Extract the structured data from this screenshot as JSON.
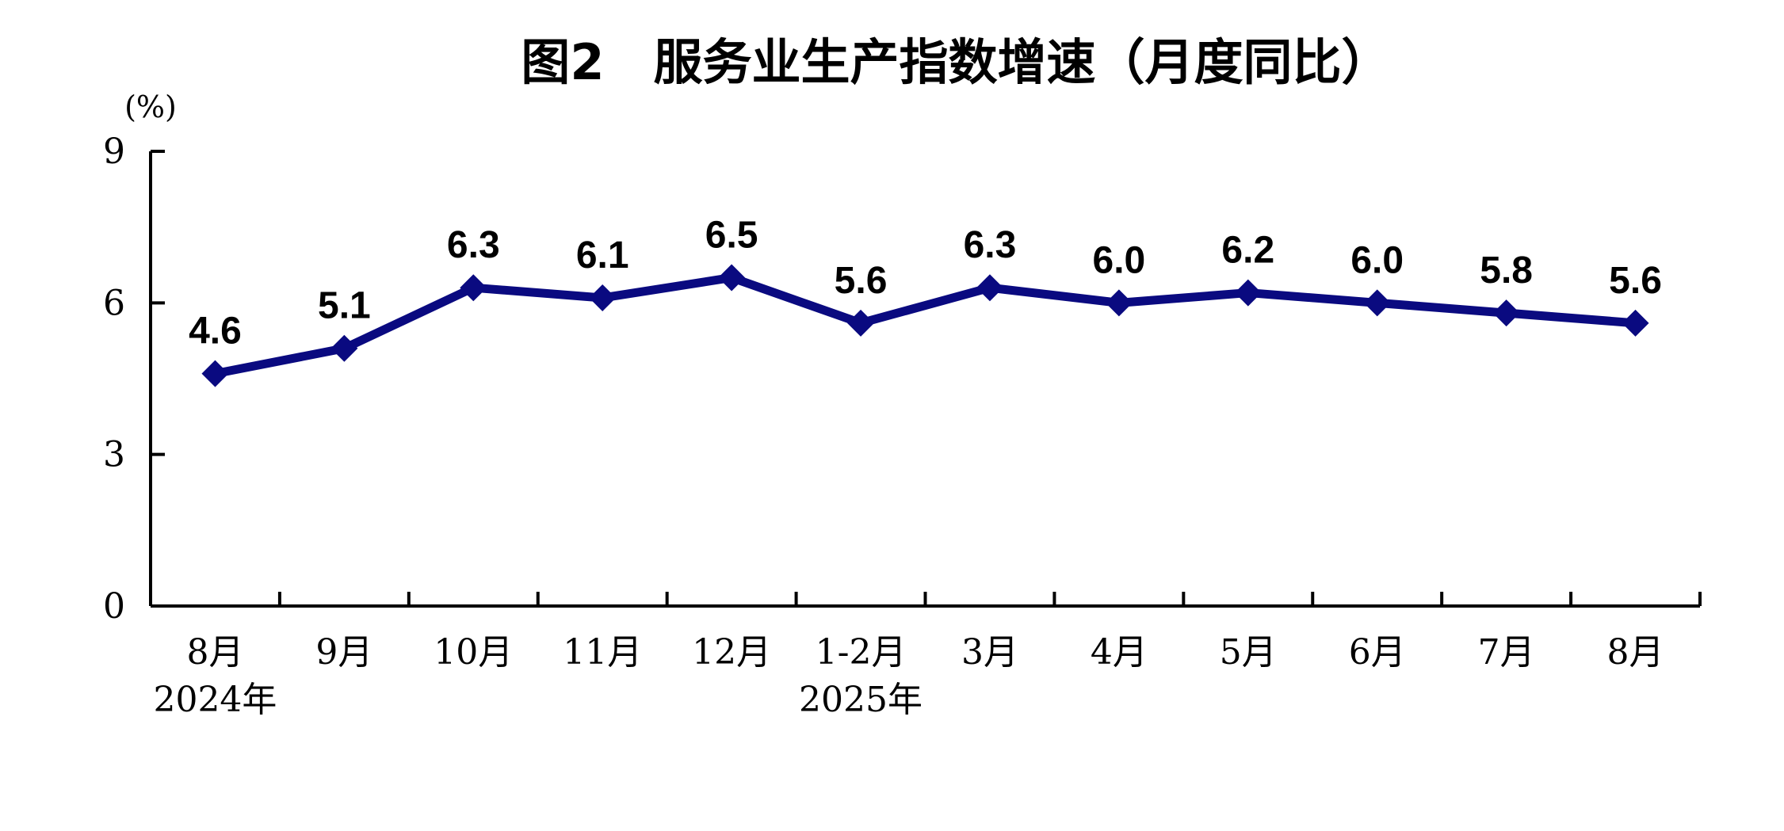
{
  "chart_data": {
    "type": "line",
    "title": "图2　服务业生产指数增速（月度同比）",
    "ylabel": "(%)",
    "xlabel": "",
    "ylim": [
      0,
      9
    ],
    "yticks": [
      "0",
      "3",
      "6",
      "9"
    ],
    "categories": [
      "8月",
      "9月",
      "10月",
      "11月",
      "12月",
      "1-2月",
      "3月",
      "4月",
      "5月",
      "6月",
      "7月",
      "8月"
    ],
    "year_labels": [
      {
        "category_index": 0,
        "text": "2024年"
      },
      {
        "category_index": 5,
        "text": "2025年"
      }
    ],
    "series": [
      {
        "values": [
          4.6,
          5.1,
          6.3,
          6.1,
          6.5,
          5.6,
          6.3,
          6.0,
          6.2,
          6.0,
          5.8,
          5.6
        ],
        "labels": [
          "4.6",
          "5.1",
          "6.3",
          "6.1",
          "6.5",
          "5.6",
          "6.3",
          "6.0",
          "6.2",
          "6.0",
          "5.8",
          "5.6"
        ],
        "color": "#0a0a80",
        "marker": "diamond"
      }
    ],
    "grid": false,
    "legend": "none"
  }
}
